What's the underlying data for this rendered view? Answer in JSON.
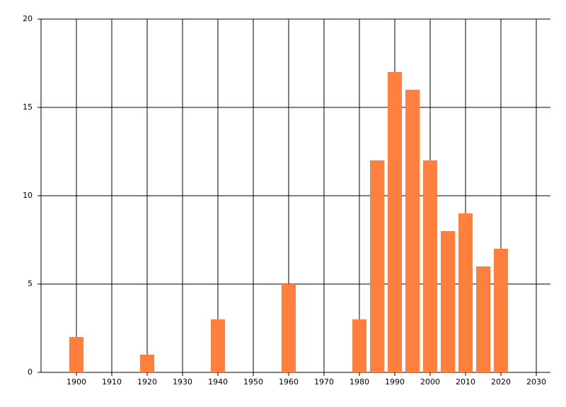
{
  "chart_data": {
    "type": "bar",
    "x": [
      1900,
      1920,
      1940,
      1960,
      1980,
      1985,
      1990,
      1995,
      2000,
      2005,
      2010,
      2015,
      2020
    ],
    "values": [
      2,
      1,
      3,
      5,
      3,
      12,
      17,
      16,
      12,
      8,
      9,
      6,
      7
    ],
    "color": "#ff7f3f",
    "xlim": [
      1890,
      2034
    ],
    "xticks": [
      1900,
      1910,
      1920,
      1930,
      1940,
      1950,
      1960,
      1970,
      1980,
      1990,
      2000,
      2010,
      2020,
      2030
    ],
    "ylim": [
      0,
      20
    ],
    "yticks": [
      0,
      5,
      10,
      15,
      20
    ],
    "grid": true
  }
}
